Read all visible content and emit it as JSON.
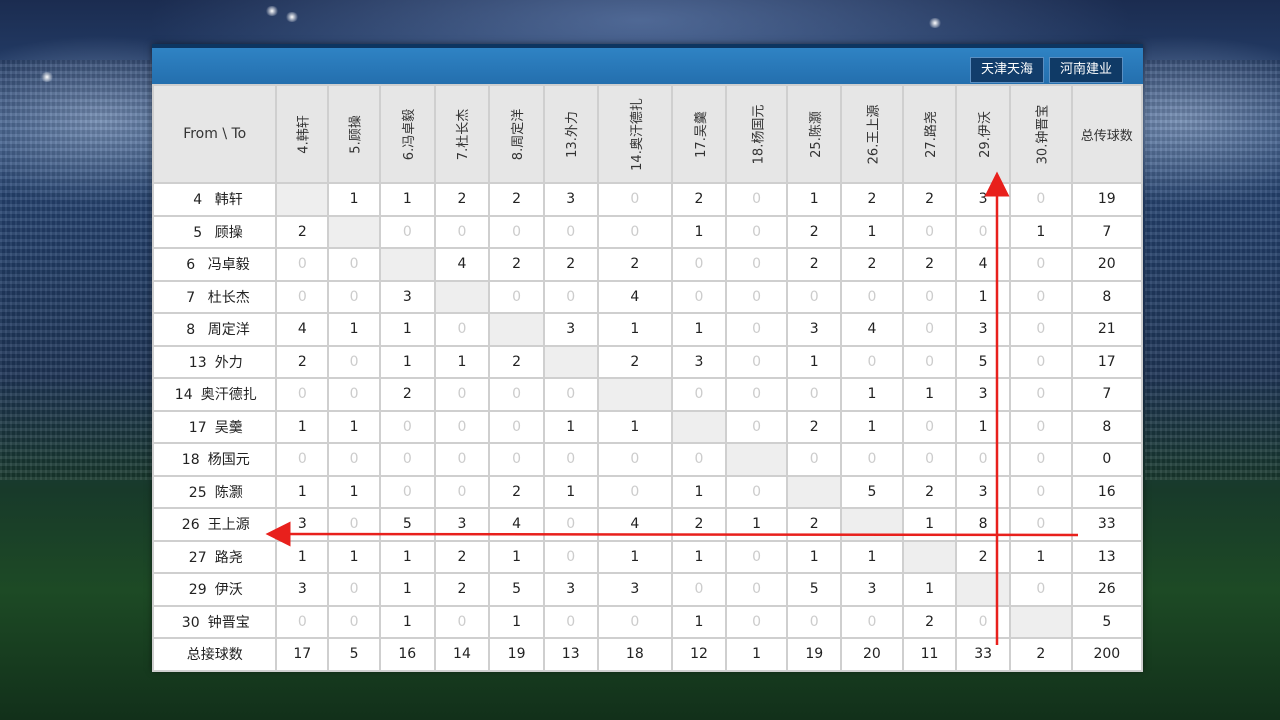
{
  "team_tabs": [
    "天津天海",
    "河南建业"
  ],
  "corner_label": "From \\ To",
  "columns": [
    "4.韩轩",
    "5.顾操",
    "6.冯卓毅",
    "7.杜长杰",
    "8.周定洋",
    "13.外力",
    "14.奥汗德扎",
    "17.吴羹",
    "18.杨国元",
    "25.陈灏",
    "26.王上源",
    "27.路尧",
    "29.伊沃",
    "30.钟晋宝"
  ],
  "total_pass_header": "总传球数",
  "rows": [
    {
      "num": "4",
      "name": "韩轩",
      "values": [
        "",
        1,
        1,
        2,
        2,
        3,
        0,
        2,
        0,
        1,
        2,
        2,
        3,
        0
      ],
      "total": 19
    },
    {
      "num": "5",
      "name": "顾操",
      "values": [
        2,
        "",
        0,
        0,
        0,
        0,
        0,
        1,
        0,
        2,
        1,
        0,
        0,
        1
      ],
      "total": 7
    },
    {
      "num": "6",
      "name": "冯卓毅",
      "values": [
        0,
        0,
        "",
        4,
        2,
        2,
        2,
        0,
        0,
        2,
        2,
        2,
        4,
        0
      ],
      "total": 20
    },
    {
      "num": "7",
      "name": "杜长杰",
      "values": [
        0,
        0,
        3,
        "",
        0,
        0,
        4,
        0,
        0,
        0,
        0,
        0,
        1,
        0
      ],
      "total": 8
    },
    {
      "num": "8",
      "name": "周定洋",
      "values": [
        4,
        1,
        1,
        0,
        "",
        3,
        1,
        1,
        0,
        3,
        4,
        0,
        3,
        0
      ],
      "total": 21
    },
    {
      "num": "13",
      "name": "外力",
      "values": [
        2,
        0,
        1,
        1,
        2,
        "",
        2,
        3,
        0,
        1,
        0,
        0,
        5,
        0
      ],
      "total": 17
    },
    {
      "num": "14",
      "name": "奥汗德扎",
      "values": [
        0,
        0,
        2,
        0,
        0,
        0,
        "",
        0,
        0,
        0,
        1,
        1,
        3,
        0
      ],
      "total": 7
    },
    {
      "num": "17",
      "name": "吴羹",
      "values": [
        1,
        1,
        0,
        0,
        0,
        1,
        1,
        "",
        0,
        2,
        1,
        0,
        1,
        0
      ],
      "total": 8
    },
    {
      "num": "18",
      "name": "杨国元",
      "values": [
        0,
        0,
        0,
        0,
        0,
        0,
        0,
        0,
        "",
        0,
        0,
        0,
        0,
        0
      ],
      "total": 0
    },
    {
      "num": "25",
      "name": "陈灏",
      "values": [
        1,
        1,
        0,
        0,
        2,
        1,
        0,
        1,
        0,
        "",
        5,
        2,
        3,
        0
      ],
      "total": 16
    },
    {
      "num": "26",
      "name": "王上源",
      "values": [
        3,
        0,
        5,
        3,
        4,
        0,
        4,
        2,
        1,
        2,
        "",
        1,
        8,
        0
      ],
      "total": 33
    },
    {
      "num": "27",
      "name": "路尧",
      "values": [
        1,
        1,
        1,
        2,
        1,
        0,
        1,
        1,
        0,
        1,
        1,
        "",
        2,
        1
      ],
      "total": 13
    },
    {
      "num": "29",
      "name": "伊沃",
      "values": [
        3,
        0,
        1,
        2,
        5,
        3,
        3,
        0,
        0,
        5,
        3,
        1,
        "",
        0
      ],
      "total": 26
    },
    {
      "num": "30",
      "name": "钟晋宝",
      "values": [
        0,
        0,
        1,
        0,
        1,
        0,
        0,
        1,
        0,
        0,
        0,
        2,
        0,
        ""
      ],
      "total": 5
    }
  ],
  "footer": {
    "label": "总接球数",
    "values": [
      17,
      5,
      16,
      14,
      19,
      13,
      18,
      12,
      1,
      19,
      20,
      11,
      33,
      2
    ],
    "total": 200
  },
  "colors": {
    "header_bar": "#2a7abb",
    "tab_bg": "#0f3a66",
    "arrow": "#e8201c",
    "zero_text": "#cccccc",
    "diagonal_bg": "#eeeeee"
  }
}
